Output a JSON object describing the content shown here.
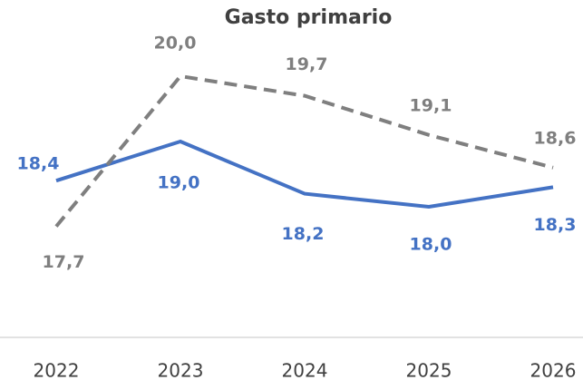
{
  "chart_data": {
    "type": "line",
    "title": "Gasto primario",
    "categories": [
      "2022",
      "2023",
      "2024",
      "2025",
      "2026"
    ],
    "series": [
      {
        "color": "#4472c4",
        "dash": false,
        "values": [
          18.4,
          19.0,
          18.2,
          18.0,
          18.3
        ],
        "value_labels": [
          "18,4",
          "19,0",
          "18,2",
          "18,0",
          "18,3"
        ]
      },
      {
        "color": "#7f7f7f",
        "dash": true,
        "values": [
          17.7,
          20.0,
          19.7,
          19.1,
          18.6
        ],
        "value_labels": [
          "17,7",
          "20,0",
          "19,7",
          "19,1",
          "18,6"
        ]
      }
    ],
    "ylim": [
      16,
      21
    ]
  }
}
